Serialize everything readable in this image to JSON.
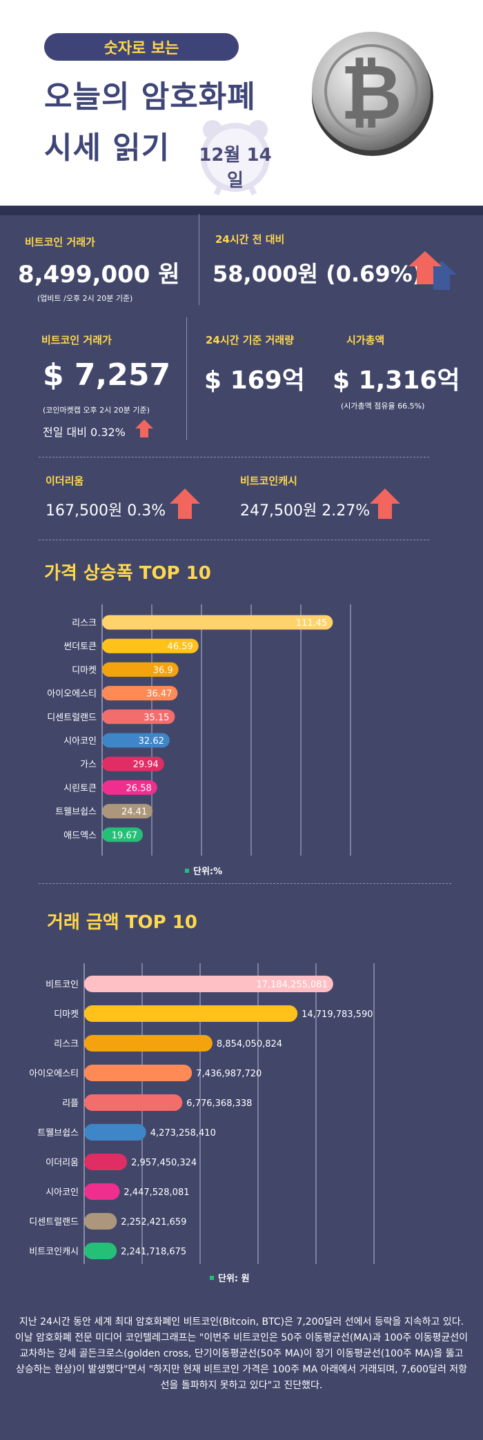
{
  "header": {
    "tag": "숫자로 보는",
    "title_line1": "오늘의 암호화폐",
    "title_line2": "시세 읽기",
    "date": "12월 14일"
  },
  "stats": {
    "btc_krw_label": "비트코인 거래가",
    "btc_krw_value": "8,499,000 원",
    "btc_krw_note": "(업비트 /오후 2시 20분 기준)",
    "change_label": "24시간 전 대비",
    "change_value": "58,000원 (0.69%)",
    "btc_usd_label": "비트코인 거래가",
    "btc_usd_value": "$ 7,257",
    "btc_usd_note": "(코인마켓캡 오후 2시 20분 기준)",
    "btc_usd_change": "전일 대비 0.32%",
    "volume_label": "24시간 기준 거래량",
    "volume_value": "$ 169억",
    "mcap_label": "시가총액",
    "mcap_value": "$ 1,316억",
    "mcap_note": "(시가총액 점유율 66.5%)",
    "eth_label": "이더리움",
    "eth_value": "167,500원  0.3%",
    "bch_label": "비트코인캐시",
    "bch_value": "247,500원  2.27%"
  },
  "colors": {
    "background": "#42476a",
    "accent_yellow": "#ffd84d",
    "arrow_red": "#f3665e",
    "arrow_blue": "#3f5a9a"
  },
  "chart_data": [
    {
      "type": "bar",
      "orientation": "horizontal",
      "title": "가격 상승폭 TOP 10",
      "unit_label": "단위:%",
      "categories": [
        "리스크",
        "썬더토큰",
        "디마켓",
        "아이오에스티",
        "디센트럴랜드",
        "시아코인",
        "가스",
        "시린토큰",
        "트웰브쉽스",
        "애드엑스"
      ],
      "values": [
        111.45,
        46.59,
        36.9,
        36.47,
        35.15,
        32.62,
        29.94,
        26.58,
        24.41,
        19.67
      ],
      "value_labels": [
        "111.45",
        "46.59",
        "36.9",
        "36.47",
        "35.15",
        "32.62",
        "29.94",
        "26.58",
        "24.41",
        "19.67"
      ],
      "colors": [
        "#ffd36b",
        "#ffc21a",
        "#f5a20f",
        "#ff8a55",
        "#f36d6d",
        "#3f86c8",
        "#e02d63",
        "#f02e8e",
        "#ac977d",
        "#25bf78"
      ],
      "xlim": [
        0,
        120
      ],
      "grid": true
    },
    {
      "type": "bar",
      "orientation": "horizontal",
      "title": "거래 금액 TOP 10",
      "unit_label": "단위: 원",
      "categories": [
        "비트코인",
        "디마켓",
        "리스크",
        "아이오에스티",
        "리플",
        "트웰브쉽스",
        "이더리움",
        "시아코인",
        "디센트럴랜드",
        "비트코인캐시"
      ],
      "values": [
        17184255081,
        14719783590,
        8854050824,
        7436987720,
        6776368338,
        4273258410,
        2957450324,
        2447528081,
        2252421659,
        2241718675
      ],
      "value_labels": [
        "17,184,255,081",
        "14,719,783,590",
        "8,854,050,824",
        "7,436,987,720",
        "6,776,368,338",
        "4,273,258,410",
        "2,957,450,324",
        "2,447,528,081",
        "2,252,421,659",
        "2,241,718,675"
      ],
      "colors": [
        "#ffc0c5",
        "#ffc21a",
        "#f5a20f",
        "#ff8a55",
        "#f36d6d",
        "#3f86c8",
        "#e02d63",
        "#f02e8e",
        "#ac977d",
        "#25bf78"
      ],
      "xlim": [
        0,
        20000000000
      ],
      "grid": true
    }
  ],
  "body_text": "지난 24시간 동안 세계 최대 암호화폐인 비트코인(Bitcoin, BTC)은 7,200달러 선에서 등락을 지속하고 있다. 이날 암호화폐 전문 미디어 코인텔레그래프는 \"이번주 비트코인은 50주 이동평균선(MA)과 100주 이동평균선이 교차하는 강세 골든크로스(golden cross, 단기이동평균선(50주 MA)이 장기 이동평균선(100주 MA)을 뚫고 상승하는 현상)이 발생했다\"면서 \"하지만 현재 비트코인 가격은 100주 MA 아래에서 거래되며, 7,600달러 저항선을 돌파하지 못하고 있다\"고 진단했다."
}
